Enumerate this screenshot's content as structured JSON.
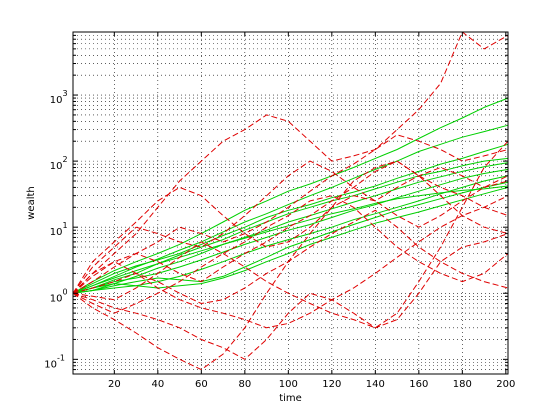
{
  "chart_data": {
    "type": "line",
    "title": "",
    "xlabel": "time",
    "ylabel": "wealth",
    "xlim": [
      1,
      201
    ],
    "ylim": [
      0.06,
      9000
    ],
    "yscale": "log",
    "grid": "dotted, major and minor",
    "x_ticks": [
      20,
      40,
      60,
      80,
      100,
      120,
      140,
      160,
      180,
      200
    ],
    "y_ticks": [
      {
        "value": 0.1,
        "base": "10",
        "exp": "-1"
      },
      {
        "value": 1,
        "base": "10",
        "exp": "0"
      },
      {
        "value": 10,
        "base": "10",
        "exp": "1"
      },
      {
        "value": 100,
        "base": "10",
        "exp": "2"
      },
      {
        "value": 1000,
        "base": "10",
        "exp": "3"
      }
    ],
    "colors": {
      "green": "#00d000",
      "red": "#e00000",
      "grid": "#000000",
      "axes": "#000000"
    },
    "x": [
      1,
      10,
      20,
      30,
      40,
      50,
      60,
      70,
      80,
      90,
      100,
      110,
      120,
      130,
      140,
      150,
      160,
      170,
      180,
      190,
      201
    ],
    "series": [
      {
        "color": "green",
        "style": "solid",
        "values": [
          1,
          1.5,
          2.2,
          3,
          4,
          5.5,
          8,
          12,
          18,
          25,
          35,
          45,
          60,
          80,
          110,
          150,
          220,
          320,
          450,
          650,
          900
        ]
      },
      {
        "color": "green",
        "style": "solid",
        "values": [
          1,
          1.3,
          1.8,
          2.5,
          3.3,
          4.5,
          6,
          8.5,
          12,
          16,
          22,
          30,
          40,
          55,
          75,
          100,
          140,
          180,
          230,
          280,
          350
        ]
      },
      {
        "color": "green",
        "style": "solid",
        "values": [
          1,
          1.4,
          2,
          2.6,
          3.2,
          4,
          5.5,
          7.5,
          10,
          14,
          18,
          22,
          28,
          34,
          42,
          55,
          70,
          90,
          110,
          140,
          180
        ]
      },
      {
        "color": "green",
        "style": "solid",
        "values": [
          1,
          1.2,
          1.6,
          2,
          2.8,
          3.8,
          5,
          6.5,
          9,
          12,
          16,
          20,
          25,
          30,
          38,
          48,
          60,
          70,
          85,
          100,
          110
        ]
      },
      {
        "color": "green",
        "style": "solid",
        "values": [
          1,
          1.1,
          1.4,
          1.8,
          2.4,
          3,
          4,
          5.5,
          7,
          9,
          12,
          15,
          19,
          24,
          30,
          38,
          48,
          58,
          70,
          82,
          95
        ]
      },
      {
        "color": "green",
        "style": "solid",
        "values": [
          1,
          1.2,
          1.5,
          1.7,
          2,
          2.5,
          3.2,
          4.2,
          5.5,
          7,
          9,
          11,
          14,
          18,
          22,
          28,
          35,
          44,
          55,
          65,
          75
        ]
      },
      {
        "color": "green",
        "style": "solid",
        "values": [
          1,
          1.1,
          1.2,
          1.3,
          1.5,
          1.8,
          2.3,
          3,
          4,
          5.2,
          6.5,
          8,
          10,
          13,
          16,
          20,
          25,
          32,
          40,
          50,
          60
        ]
      },
      {
        "color": "green",
        "style": "solid",
        "values": [
          1,
          1.1,
          1.3,
          1.5,
          1.7,
          1.6,
          1.5,
          1.8,
          2.5,
          3.5,
          5,
          6.5,
          8.5,
          11,
          14,
          18,
          22,
          27,
          33,
          40,
          48
        ]
      },
      {
        "color": "green",
        "style": "solid",
        "values": [
          1,
          1.2,
          1.4,
          1.3,
          1.2,
          1.3,
          1.4,
          1.7,
          2.2,
          3,
          4,
          5.5,
          7,
          9,
          11.5,
          14,
          17,
          21,
          26,
          32,
          40
        ]
      },
      {
        "color": "green",
        "style": "solid",
        "values": [
          1,
          1.3,
          1.7,
          2.2,
          2.8,
          3.5,
          4.4,
          5.5,
          6.8,
          8.5,
          10.5,
          13,
          16,
          19,
          23,
          27,
          30,
          33,
          36,
          38,
          42
        ]
      },
      {
        "color": "red",
        "style": "dashed",
        "values": [
          1,
          2,
          4,
          8,
          20,
          50,
          100,
          200,
          300,
          500,
          400,
          200,
          100,
          120,
          150,
          300,
          600,
          1500,
          9000,
          5000,
          8000
        ]
      },
      {
        "color": "red",
        "style": "dashed",
        "values": [
          1,
          0.6,
          0.4,
          0.25,
          0.15,
          0.1,
          0.07,
          0.12,
          0.3,
          1,
          3,
          8,
          20,
          50,
          80,
          100,
          60,
          40,
          30,
          20,
          15
        ]
      },
      {
        "color": "red",
        "style": "dashed",
        "values": [
          1,
          3,
          6,
          12,
          25,
          40,
          30,
          15,
          8,
          5,
          6,
          10,
          20,
          30,
          25,
          40,
          60,
          80,
          60,
          40,
          50
        ]
      },
      {
        "color": "red",
        "style": "dashed",
        "values": [
          1,
          0.8,
          0.6,
          0.5,
          0.4,
          0.3,
          0.2,
          0.15,
          0.1,
          0.2,
          0.5,
          1,
          0.8,
          0.5,
          0.3,
          0.4,
          1,
          3,
          5,
          6,
          8
        ]
      },
      {
        "color": "red",
        "style": "dashed",
        "values": [
          1,
          2,
          3,
          4,
          3,
          2,
          1.5,
          2.5,
          4,
          6,
          10,
          15,
          25,
          40,
          70,
          100,
          60,
          30,
          15,
          10,
          8
        ]
      },
      {
        "color": "red",
        "style": "dashed",
        "values": [
          1,
          1.5,
          2.5,
          4,
          6,
          10,
          8,
          6,
          8,
          12,
          20,
          35,
          60,
          90,
          150,
          250,
          200,
          150,
          100,
          120,
          150
        ]
      },
      {
        "color": "red",
        "style": "dashed",
        "values": [
          1,
          0.7,
          0.5,
          0.7,
          1,
          1.5,
          2.5,
          4,
          6,
          10,
          15,
          25,
          30,
          20,
          10,
          5,
          3,
          2,
          1.5,
          2,
          4
        ]
      },
      {
        "color": "red",
        "style": "dashed",
        "values": [
          1,
          1.8,
          3,
          2,
          1.2,
          0.8,
          0.6,
          0.5,
          0.4,
          0.3,
          0.35,
          0.5,
          0.8,
          1.2,
          2,
          3.5,
          6,
          10,
          15,
          20,
          30
        ]
      },
      {
        "color": "red",
        "style": "dashed",
        "values": [
          1,
          1.2,
          1.5,
          2,
          1.5,
          1,
          0.7,
          0.8,
          1.2,
          2,
          3,
          5,
          8,
          12,
          18,
          10,
          5,
          3,
          2,
          1.5,
          1.2
        ]
      },
      {
        "color": "red",
        "style": "dashed",
        "values": [
          1,
          2.5,
          5,
          10,
          8,
          6,
          5,
          8,
          15,
          30,
          60,
          100,
          70,
          40,
          25,
          15,
          10,
          15,
          25,
          40,
          60
        ]
      },
      {
        "color": "red",
        "style": "dashed",
        "values": [
          1,
          0.9,
          0.8,
          1.2,
          2,
          3.5,
          6,
          4,
          2.5,
          1.5,
          1,
          0.7,
          0.5,
          0.4,
          0.3,
          0.5,
          1.5,
          5,
          20,
          80,
          200
        ]
      }
    ]
  }
}
